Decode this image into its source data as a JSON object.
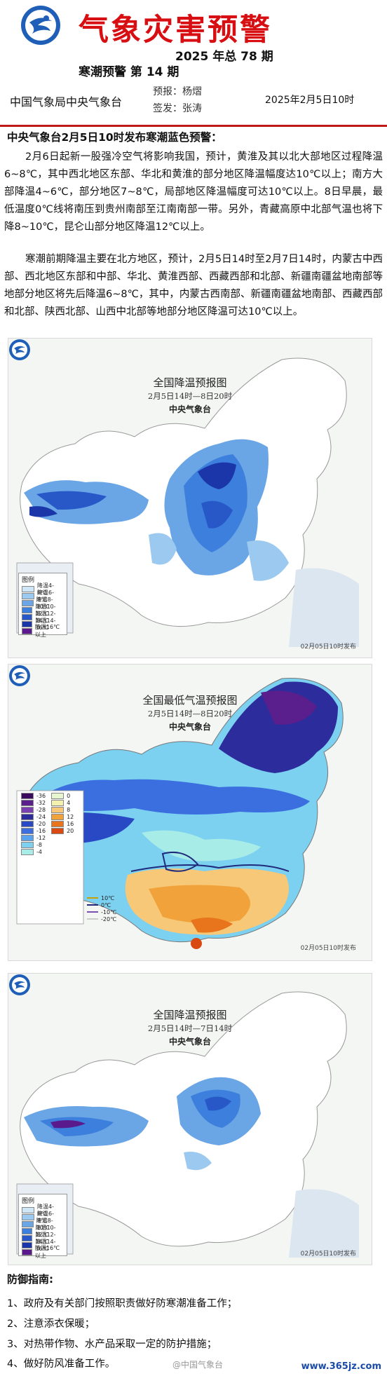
{
  "header": {
    "title": "气象灾害预警",
    "year_issue": "2025 年总 78 期",
    "sub_issue": "寒潮预警 第 14 期",
    "org": "中国气象局中央气象台",
    "forecaster": "预报：杨熠",
    "signer": "签发：张涛",
    "date": "2025年2月5日10时"
  },
  "body": {
    "headline": "中央气象台2月5日10时发布寒潮蓝色预警：",
    "paragraph1": "2月6日起新一股强冷空气将影响我国，预计，黄淮及其以北大部地区过程降温6~8℃，其中西北地区东部、华北和黄淮的部分地区降温幅度达10℃以上；南方大部降温4~6℃，部分地区7~8℃，局部地区降温幅度可达10℃以上。8日早晨，最低温度0℃线将南压到贵州南部至江南南部一带。另外，青藏高原中北部气温也将下降8~10℃，昆仑山部分地区降温12℃以上。",
    "paragraph2": "寒潮前期降温主要在北方地区，预计，2月5日14时至2月7日14时，内蒙古中西部、西北地区东部和中部、华北、黄淮西部、西藏西部和北部、新疆南疆盆地南部等地部分地区将先后降温6~8℃，其中，内蒙古西南部、新疆南疆盆地南部、西藏西部和北部、陕西北部、山西中北部等地部分地区降温可达10℃以上。"
  },
  "maps": [
    {
      "title": "全国降温预报图",
      "period": "2月5日14时—8日20时",
      "org": "中央气象台",
      "legend_title": "图例",
      "legend": [
        "降温4-6℃",
        "降温6-8℃",
        "降温8-10℃",
        "降温10-12℃",
        "降温12-14℃",
        "降温14-16℃",
        "降温16℃以上"
      ],
      "legend_colors": [
        "#cfe6f7",
        "#9cc9ef",
        "#6aa5e6",
        "#3d7fdc",
        "#2858c8",
        "#1b36a8",
        "#5a1a8e"
      ],
      "publish": "02月05日10时发布"
    },
    {
      "title": "全国最低气温预报图",
      "period": "2月5日14时—8日20时",
      "org": "中央气象台",
      "legend_labels": [
        "-36",
        "-32",
        "-28",
        "-24",
        "-20",
        "-16",
        "-12",
        "-8",
        "-4",
        "0",
        "4",
        "8",
        "12",
        "16",
        "20"
      ],
      "legend_colors_cold": [
        "#3a0a5e",
        "#5a1f8c",
        "#7a3fb0",
        "#2d2c9c",
        "#2948c4",
        "#3b6fe0",
        "#58a2ee",
        "#7cd0f0",
        "#a8ece8"
      ],
      "legend_colors_warm": [
        "#e8f6d0",
        "#f4f0b0",
        "#f7c878",
        "#f2a23a",
        "#e8741c",
        "#d84a12"
      ],
      "line_legend": [
        "10℃",
        "0℃",
        "-10℃",
        "-20℃"
      ],
      "line_colors": [
        "#c8a000",
        "#202a7c",
        "#7a4fb0",
        "#cccccc"
      ],
      "publish": "02月05日10时发布"
    },
    {
      "title": "全国降温预报图",
      "period": "2月5日14时—7日14时",
      "org": "中央气象台",
      "legend_title": "图例",
      "legend": [
        "降温4-6℃",
        "降温6-8℃",
        "降温8-10℃",
        "降温10-12℃",
        "降温12-14℃",
        "降温14-16℃",
        "降温16℃以上"
      ],
      "legend_colors": [
        "#cfe6f7",
        "#9cc9ef",
        "#6aa5e6",
        "#3d7fdc",
        "#2858c8",
        "#1b36a8",
        "#5a1a8e"
      ],
      "publish": "02月05日10时发布"
    }
  ],
  "guide": {
    "title": "防御指南:",
    "items": [
      "1、政府及有关部门按照职责做好防寒潮准备工作；",
      "2、注意添衣保暖；",
      "3、对热带作物、水产品采取一定的防护措施；",
      "4、做好防风准备工作。"
    ]
  },
  "footer": {
    "watermark": "@中国气象台",
    "site": "www.365jz.com"
  },
  "colors": {
    "title_red": "#d80f12",
    "rule_red": "#c01818",
    "link_blue": "#1a4ba8"
  }
}
